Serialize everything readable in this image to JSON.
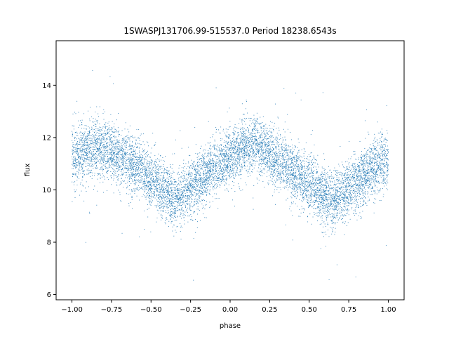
{
  "chart_data": {
    "type": "scatter",
    "title": "1SWASPJ131706.99-515537.0 Period 18238.6543s",
    "xlabel": "phase",
    "ylabel": "flux",
    "xlim": [
      -1.1,
      1.1
    ],
    "ylim": [
      5.8,
      15.7
    ],
    "x_ticks": [
      -1.0,
      -0.75,
      -0.5,
      -0.25,
      0.0,
      0.25,
      0.5,
      0.75,
      1.0
    ],
    "x_tick_labels": [
      "−1.00",
      "−0.75",
      "−0.50",
      "−0.25",
      "0.00",
      "0.25",
      "0.50",
      "0.75",
      "1.00"
    ],
    "y_ticks": [
      6,
      8,
      10,
      12,
      14
    ],
    "y_tick_labels": [
      "6",
      "8",
      "10",
      "12",
      "14"
    ],
    "grid": false,
    "point_color": "#1f77b4",
    "series": [
      {
        "trend_phase": [
          -1.0,
          -0.9,
          -0.8,
          -0.7,
          -0.6,
          -0.5,
          -0.4,
          -0.35,
          -0.3,
          -0.2,
          -0.1,
          0.0,
          0.1,
          0.15,
          0.2,
          0.3,
          0.4,
          0.5,
          0.6,
          0.65,
          0.7,
          0.8,
          0.9,
          1.0
        ],
        "trend_flux": [
          11.2,
          11.5,
          11.6,
          11.3,
          10.9,
          10.4,
          9.9,
          9.6,
          9.8,
          10.3,
          10.9,
          11.3,
          11.6,
          11.7,
          11.6,
          11.2,
          10.7,
          10.2,
          9.8,
          9.6,
          9.8,
          10.3,
          10.8,
          11.2
        ],
        "scatter_spread": 0.55,
        "outlier_range": [
          6.2,
          15.2
        ]
      }
    ]
  }
}
